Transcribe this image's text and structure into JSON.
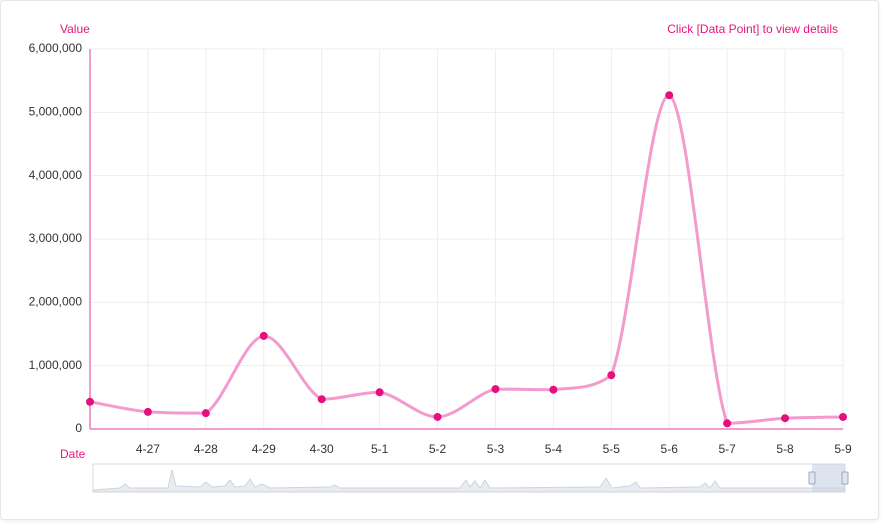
{
  "chart_data": {
    "type": "line",
    "y_axis_label": "Value",
    "x_axis_label": "Date",
    "annotation": "Click [Data Point] to view details",
    "categories": [
      null,
      "4-27",
      "4-28",
      "4-29",
      "4-30",
      "5-1",
      "5-2",
      "5-3",
      "5-4",
      "5-5",
      "5-6",
      "5-7",
      "5-8",
      "5-9"
    ],
    "series": [
      {
        "name": "Value",
        "color": "#f39bcf",
        "point_color": "#e5107d",
        "values": [
          430000,
          270000,
          250000,
          1470000,
          470000,
          580000,
          190000,
          630000,
          620000,
          850000,
          5270000,
          90000,
          170000,
          190000
        ]
      }
    ],
    "ylim": [
      0,
      6000000
    ],
    "yticks": [
      0,
      {
        "value": 1000000,
        "label": "1,000,000"
      },
      {
        "value": 2000000,
        "label": "2,000,000"
      },
      {
        "value": 3000000,
        "label": "3,000,000"
      },
      {
        "value": 4000000,
        "label": "4,000,000"
      },
      {
        "value": 5000000,
        "label": "5,000,000"
      },
      {
        "value": 6000000,
        "label": "6,000,000"
      }
    ],
    "grid": true,
    "smooth": true
  }
}
